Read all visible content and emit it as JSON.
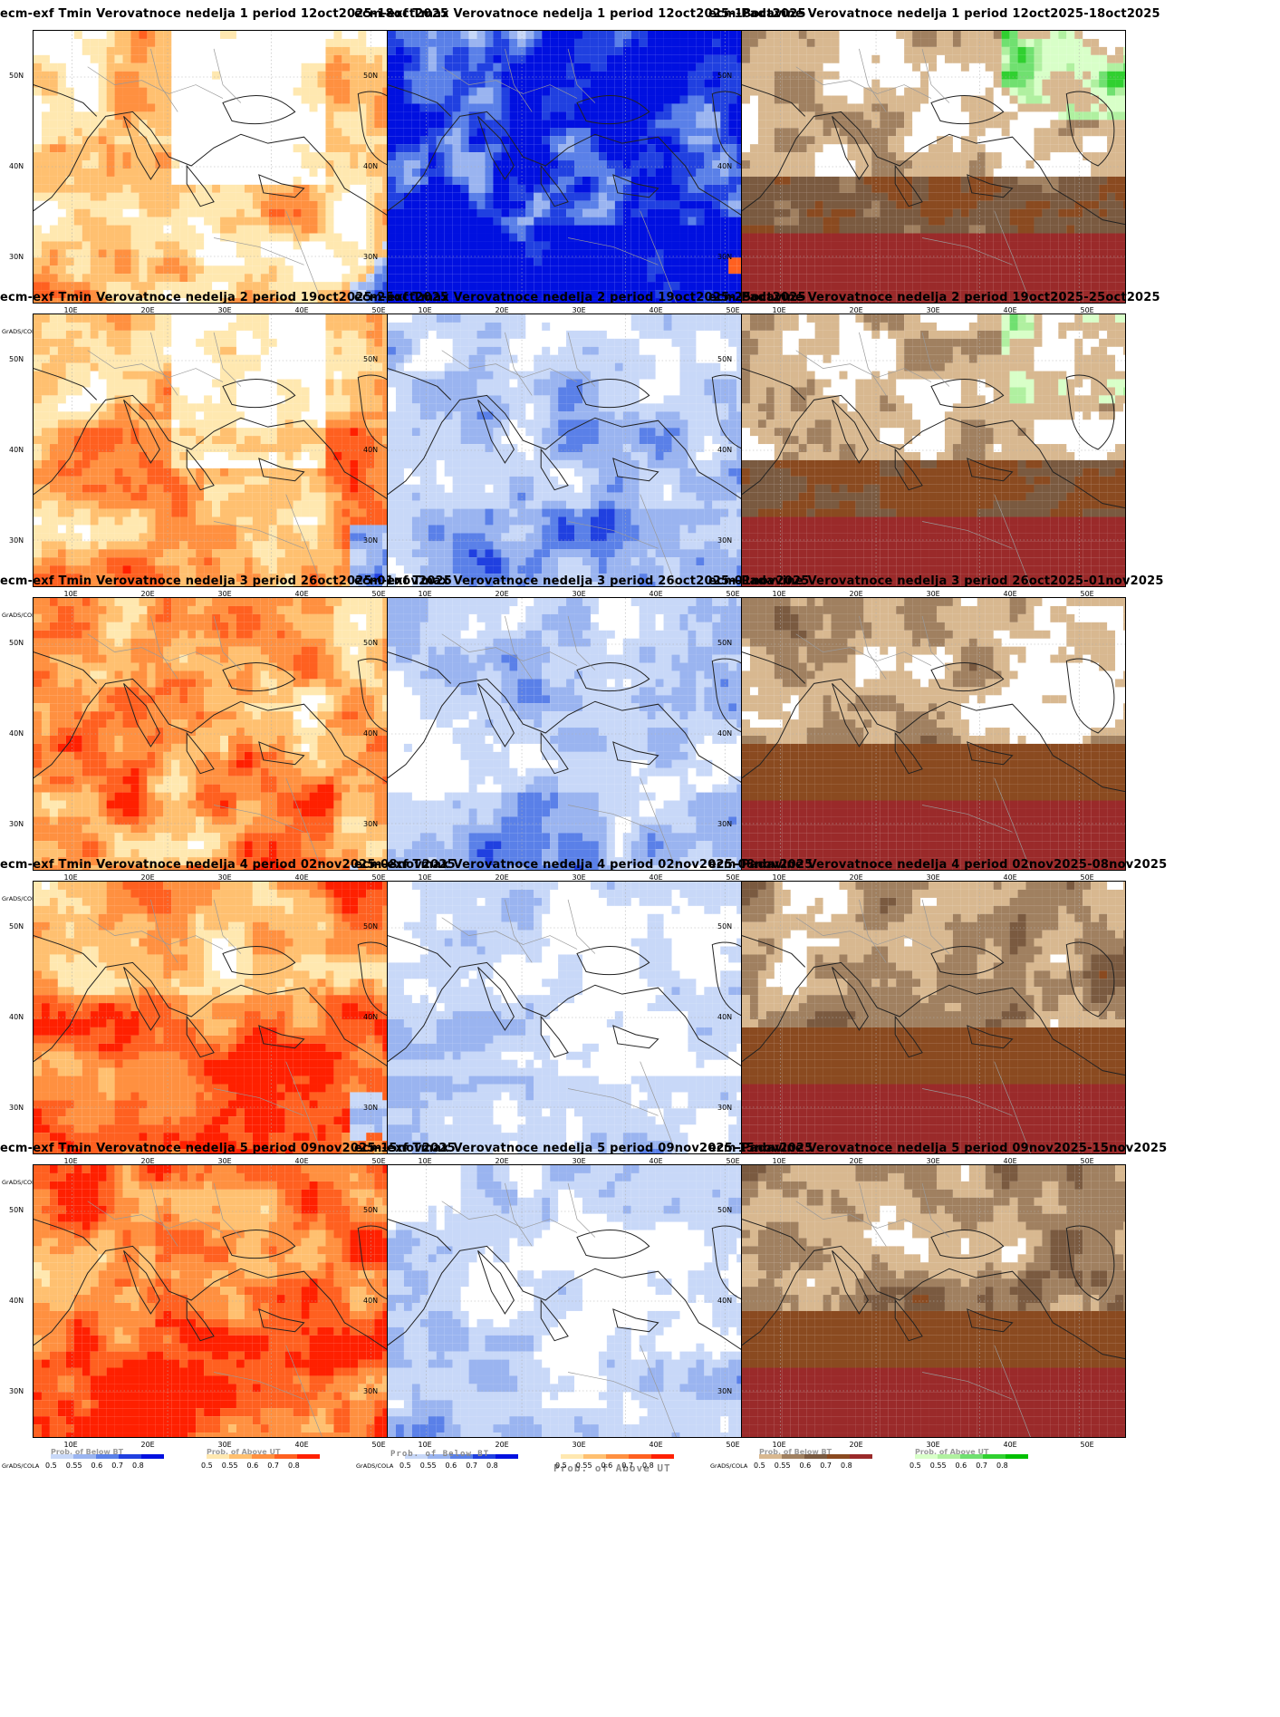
{
  "rows": [
    {
      "tmin_title": "ecm-exf Tmin Verovatnoce nedelja 1 period 12oct2025-18oct2025",
      "tmax_title": "ecm-exf Tmax Verovatnoce nedelja 1 period 12oct2025-18oct2025",
      "pad_title": "ecm-Padavine Verovatnoce nedelja 1 period 12oct2025-18oct2025"
    },
    {
      "tmin_title": "ecm-exf Tmin Verovatnoce nedelja 2 period 19oct2025-25oct2025",
      "tmax_title": "ecm-exf Tmax Verovatnoce nedelja 2 period 19oct2025-25oct2025",
      "pad_title": "ecm-Padavine Verovatnoce nedelja 2 period 19oct2025-25oct2025"
    },
    {
      "tmin_title": "ecm-exf Tmin Verovatnoce nedelja 3 period 26oct2025-01nov2025",
      "tmax_title": "ecm-exf Tmax Verovatnoce nedelja 3 period 26oct2025-01nov2025",
      "pad_title": "ecm-Padavine Verovatnoce nedelja 3 period 26oct2025-01nov2025"
    },
    {
      "tmin_title": "ecm-exf Tmin Verovatnoce nedelja 4 period 02nov2025-08nov2025",
      "tmax_title": "ecm-exf Tmax Verovatnoce nedelja 4 period 02nov2025-08nov2025",
      "pad_title": "ecm-Padavine Verovatnoce nedelja 4 period 02nov2025-08nov2025"
    },
    {
      "tmin_title": "ecm-exf Tmin Verovatnoce nedelja 5 period 09nov2025-15nov2025",
      "tmax_title": "ecm-exf Tmax Verovatnoce nedelja 5 period 09nov2025-15nov2025",
      "pad_title": "ecm-Padavine Verovatnoce nedelja 5 period 09nov2025-15nov2025"
    }
  ],
  "lat_labels": [
    "50N",
    "40N",
    "30N"
  ],
  "lon_labels": [
    "10E",
    "20E",
    "30E",
    "40E",
    "50E"
  ],
  "legend": {
    "below_title": "Prob. of Below BT",
    "above_title": "Prob. of Above UT",
    "ticks": [
      "0.5",
      "0.55",
      "0.6",
      "0.7",
      "0.8"
    ],
    "grads_label": "GrADS/COLA"
  },
  "big_legend": {
    "tmax_below": "Prob. of Below BT",
    "tmax_above": "Prob. of Above UT"
  },
  "colors": {
    "blue_scale": [
      "#c8d8f8",
      "#9ab4f0",
      "#5a80e8",
      "#2040e0",
      "#0010e0"
    ],
    "orange_scale": [
      "#ffe8b0",
      "#ffc070",
      "#ff9040",
      "#ff6020",
      "#ff2000"
    ],
    "brown_scale": [
      "#d8b890",
      "#a08060",
      "#7a5a40",
      "#8a4a20",
      "#9a2a2a"
    ],
    "green_scale": [
      "#d8ffc8",
      "#b0f0a0",
      "#70e070",
      "#30d030",
      "#00c000"
    ]
  }
}
